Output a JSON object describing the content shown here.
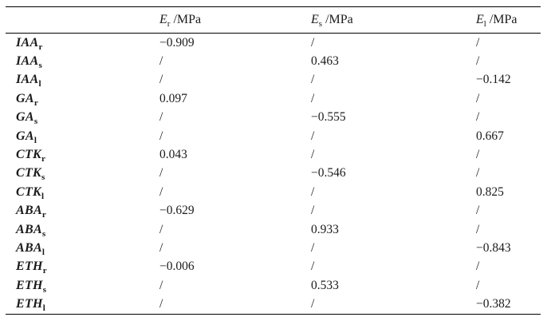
{
  "page": {
    "background": "#ffffff",
    "text_color": "#1b1b1b",
    "rule_color": "#000000"
  },
  "table": {
    "corner_label": "",
    "empty_cell_marker": "/",
    "columns": [
      {
        "symbol": "E",
        "sub": "r",
        "unit": " /MPa"
      },
      {
        "symbol": "E",
        "sub": "s",
        "unit": " /MPa"
      },
      {
        "symbol": "E",
        "sub": "l",
        "unit": " /MPa"
      }
    ],
    "rows": [
      {
        "hormone": "IAA",
        "sub": "r",
        "values": [
          "−0.909",
          "/",
          "/"
        ]
      },
      {
        "hormone": "IAA",
        "sub": "s",
        "values": [
          "/",
          "0.463",
          "/"
        ]
      },
      {
        "hormone": "IAA",
        "sub": "l",
        "values": [
          "/",
          "/",
          "−0.142"
        ]
      },
      {
        "hormone": "GA",
        "sub": "r",
        "values": [
          "0.097",
          "/",
          "/"
        ]
      },
      {
        "hormone": "GA",
        "sub": "s",
        "values": [
          "/",
          "−0.555",
          "/"
        ]
      },
      {
        "hormone": "GA",
        "sub": "l",
        "values": [
          "/",
          "/",
          "0.667"
        ]
      },
      {
        "hormone": "CTK",
        "sub": "r",
        "values": [
          "0.043",
          "/",
          "/"
        ]
      },
      {
        "hormone": "CTK",
        "sub": "s",
        "values": [
          "/",
          "−0.546",
          "/"
        ]
      },
      {
        "hormone": "CTK",
        "sub": "l",
        "values": [
          "/",
          "/",
          "0.825"
        ]
      },
      {
        "hormone": "ABA",
        "sub": "r",
        "values": [
          "−0.629",
          "/",
          "/"
        ]
      },
      {
        "hormone": "ABA",
        "sub": "s",
        "values": [
          "/",
          "0.933",
          "/"
        ]
      },
      {
        "hormone": "ABA",
        "sub": "l",
        "values": [
          "/",
          "/",
          "−0.843"
        ]
      },
      {
        "hormone": "ETH",
        "sub": "r",
        "values": [
          "−0.006",
          "/",
          "/"
        ]
      },
      {
        "hormone": "ETH",
        "sub": "s",
        "values": [
          "/",
          "0.533",
          "/"
        ]
      },
      {
        "hormone": "ETH",
        "sub": "l",
        "values": [
          "/",
          "/",
          "−0.382"
        ]
      }
    ]
  }
}
